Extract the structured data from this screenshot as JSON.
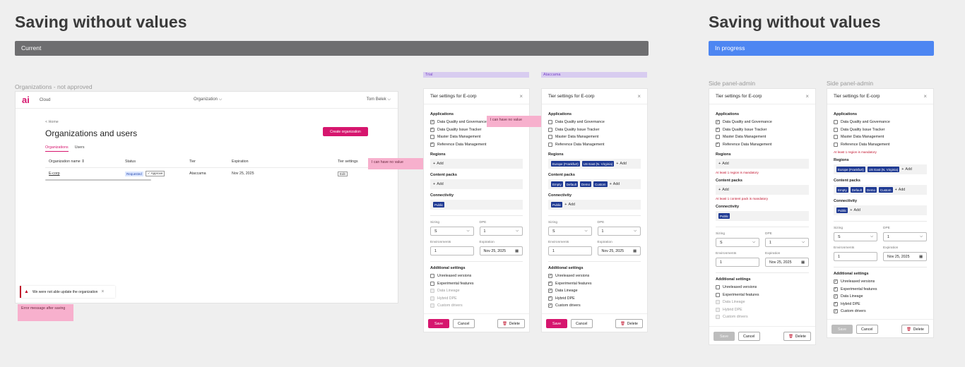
{
  "left": {
    "title": "Saving without values",
    "banner": "Current",
    "banner_color": "#6e6e70",
    "frame_label": "Organizations - not approved",
    "app": {
      "logo": "ai",
      "product": "Cloud",
      "org_select": "Organization",
      "user": "Tom Belek",
      "breadcrumb": "< Home",
      "page_title": "Organizations and users",
      "create_button": "Create organization",
      "tabs": [
        "Organizations",
        "Users"
      ],
      "columns": [
        "Organization name",
        "Status",
        "Tier",
        "Expiration",
        "Tier settings"
      ],
      "row": {
        "name": "E-corp",
        "status": "Requested",
        "approve": "Approve",
        "tier": "Ataccama",
        "expiration": "Nov 25, 2025",
        "edit": "Edit"
      },
      "toast": "We were not able update the organization",
      "note_no_value": "I can have no value",
      "note_error": "Error message after saving"
    },
    "tags": [
      "Trial",
      "Ataccama"
    ],
    "note_panel": "I can have no value"
  },
  "right": {
    "title": "Saving without values",
    "banner": "In progress",
    "banner_color": "#4d86f2",
    "frame_labels": [
      "Side panel-admin",
      "Side panel-admin"
    ]
  },
  "panel_common": {
    "title": "Tier settings for E-corp",
    "applications_label": "Applications",
    "applications": [
      "Data Quality and Governance",
      "Data Quality Issue Tracker",
      "Master Data Management",
      "Reference Data Management"
    ],
    "regions_label": "Regions",
    "content_packs_label": "Content packs",
    "connectivity_label": "Connectivity",
    "add": "Add",
    "sizing_label": "Sizing",
    "sizing_value": "S",
    "dpe_label": "DPE",
    "dpe_value": "1",
    "environments_label": "Environments",
    "environments_value": "1",
    "expiration_label": "Expiration",
    "expiration_value": "Nov 25, 2025",
    "additional_label": "Additional settings",
    "additional": [
      "Unreleased versions",
      "Experimental features",
      "Data Lineage",
      "Hybrid DPE",
      "Custom drivers"
    ],
    "save": "Save",
    "cancel": "Cancel",
    "delete": "Delete",
    "region_chips": [
      "Europe (Frankfurt)",
      "US East (N. Virginia)"
    ],
    "content_chips": [
      "Empty",
      "Default",
      "Demo",
      "Custom"
    ],
    "public_chip": "Public",
    "err_regions": "At least 1 region is mandatory",
    "err_content": "At least 1 content pack is mandatory",
    "err_app": "At least 1 region is mandatory"
  }
}
